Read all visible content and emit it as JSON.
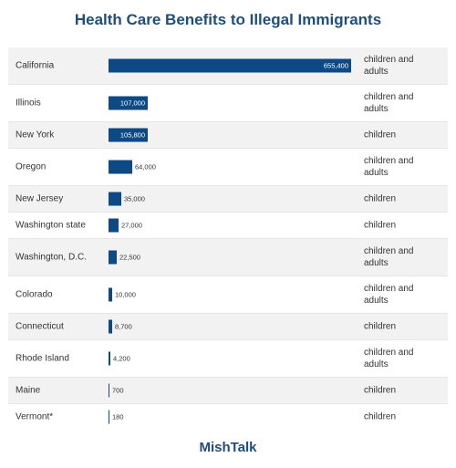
{
  "title": "Health Care Benefits to Illegal Immigrants",
  "footer": "MishTalk",
  "colors": {
    "bar": "#0d4a85",
    "title": "#1f4e79",
    "shade": "#f2f2f2"
  },
  "chart_data": {
    "type": "bar",
    "orientation": "horizontal",
    "title": "Health Care Benefits to Illegal Immigrants",
    "categories": [
      "California",
      "Illinois",
      "New York",
      "Oregon",
      "New Jersey",
      "Washington state",
      "Washington, D.C.",
      "Colorado",
      "Connecticut",
      "Rhode Island",
      "Maine",
      "Vermont*"
    ],
    "values": [
      655400,
      107000,
      105800,
      64000,
      35000,
      27000,
      22500,
      10000,
      8700,
      4200,
      700,
      180
    ],
    "value_labels": [
      "655,400",
      "107,000",
      "105,800",
      "64,000",
      "35,000",
      "27,000",
      "22,500",
      "10,000",
      "8,700",
      "4,200",
      "700",
      "180"
    ],
    "coverage": [
      "children and adults",
      "children and adults",
      "children",
      "children and adults",
      "children",
      "children",
      "children and adults",
      "children and adults",
      "children",
      "children and adults",
      "children",
      "children"
    ],
    "xlim": [
      0,
      655400
    ],
    "grid": false
  }
}
